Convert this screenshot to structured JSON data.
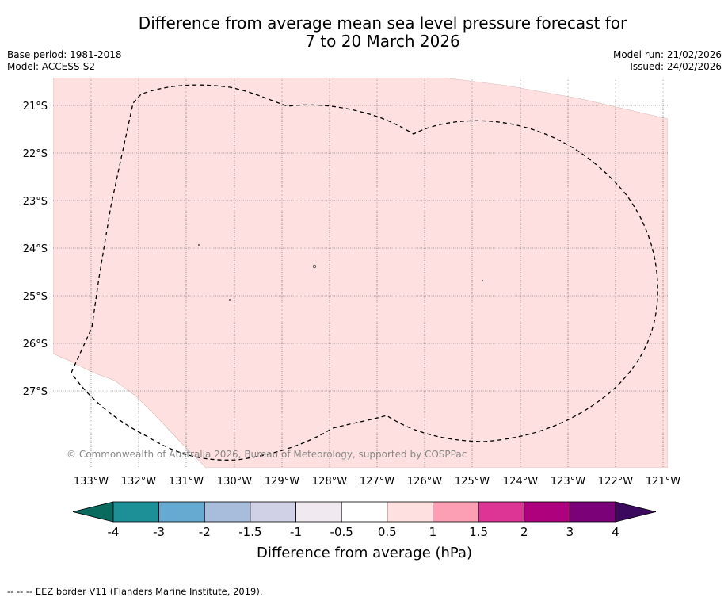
{
  "title": {
    "line1": "Difference from average mean sea level pressure forecast for",
    "line2": "7 to 20 March 2026"
  },
  "meta": {
    "base_period": "Base period: 1981-2018",
    "model": "Model: ACCESS-S2",
    "model_run": "Model run: 21/02/2026",
    "issued": "Issued: 24/02/2026"
  },
  "map": {
    "copyright": "© Commonwealth of Australia 2026, Bureau of Meteorology, supported by COSPPac",
    "lon_labels": [
      "133°W",
      "132°W",
      "131°W",
      "130°W",
      "129°W",
      "128°W",
      "127°W",
      "126°W",
      "125°W",
      "124°W",
      "123°W",
      "122°W",
      "121°W"
    ],
    "lat_labels": [
      "21°S",
      "22°S",
      "23°S",
      "24°S",
      "25°S",
      "26°S",
      "27°S"
    ],
    "anomaly_fill_color": "#fde0df",
    "eez_border": "dashed"
  },
  "colorbar": {
    "label": "Difference from average (hPa)",
    "ticks": [
      "-4",
      "-3",
      "-2",
      "-1.5",
      "-1",
      "-0.5",
      "0.5",
      "1",
      "1.5",
      "2",
      "3",
      "4"
    ],
    "under_color": "#0a6a5e",
    "over_color": "#3b0a5e",
    "colors": [
      "#1d8f96",
      "#67aad1",
      "#a8bcdc",
      "#d0d1e7",
      "#f0e9ef",
      "#ffffff",
      "#fde0df",
      "#fc9fb5",
      "#dd3596",
      "#ae017e",
      "#7a0177"
    ]
  },
  "footer": {
    "note": "--  --  -- EEZ border V11 (Flanders Marine Institute, 2019)."
  }
}
